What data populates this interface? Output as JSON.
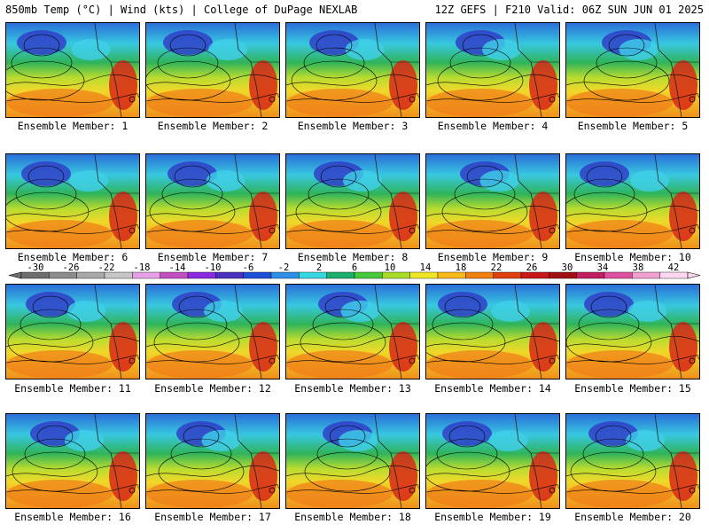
{
  "header": {
    "title": "850mb Temp (°C) | Wind (kts) | College of DuPage NEXLAB",
    "run_info": "12Z GEFS | F210 Valid: 06Z SUN JUN 01 2025"
  },
  "label_prefix": "Ensemble Member: ",
  "members": [
    {
      "id": "1"
    },
    {
      "id": "2"
    },
    {
      "id": "3"
    },
    {
      "id": "4"
    },
    {
      "id": "5"
    },
    {
      "id": "6"
    },
    {
      "id": "7"
    },
    {
      "id": "8"
    },
    {
      "id": "9"
    },
    {
      "id": "10"
    },
    {
      "id": "11"
    },
    {
      "id": "12"
    },
    {
      "id": "13"
    },
    {
      "id": "14"
    },
    {
      "id": "15"
    },
    {
      "id": "16"
    },
    {
      "id": "17"
    },
    {
      "id": "18"
    },
    {
      "id": "19"
    },
    {
      "id": "20"
    }
  ],
  "colorbar": {
    "ticks": [
      "-30",
      "-26",
      "-22",
      "-18",
      "-14",
      "-10",
      "-6",
      "-2",
      "2",
      "6",
      "10",
      "14",
      "18",
      "22",
      "26",
      "30",
      "34",
      "38",
      "42"
    ],
    "colors": [
      "#6e6e6e",
      "#8c8c8c",
      "#a8a8a8",
      "#c6c6c6",
      "#e6a0e6",
      "#c050c0",
      "#8a2be2",
      "#4b2fbf",
      "#1e4fd6",
      "#2e8ee6",
      "#38d6e0",
      "#1cae6c",
      "#45c83c",
      "#a8dc28",
      "#f0e628",
      "#f8b818",
      "#f08010",
      "#e04010",
      "#c81818",
      "#a01010",
      "#c02060",
      "#e050a0",
      "#f0a0d0",
      "#ffd6f0"
    ]
  }
}
